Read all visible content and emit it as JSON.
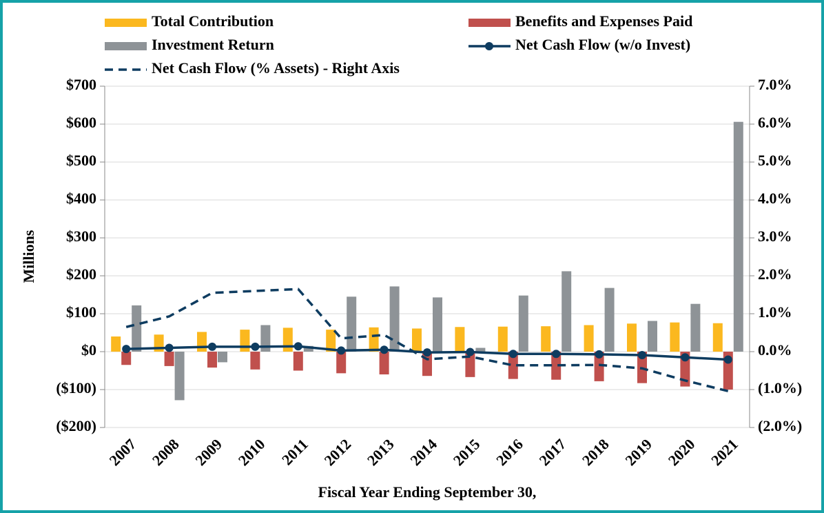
{
  "chart_data": {
    "type": "bar",
    "x_label": "Fiscal Year Ending September 30,",
    "y_label": "Millions",
    "categories": [
      "2007",
      "2008",
      "2009",
      "2010",
      "2011",
      "2012",
      "2013",
      "2014",
      "2015",
      "2016",
      "2017",
      "2018",
      "2019",
      "2020",
      "2021"
    ],
    "series": [
      {
        "name": "Total Contribution",
        "type": "bar",
        "color": "#fbb81f",
        "values": [
          40,
          45,
          52,
          58,
          63,
          58,
          64,
          61,
          65,
          66,
          67,
          70,
          74,
          77,
          75
        ]
      },
      {
        "name": "Benefits and Expenses Paid",
        "type": "bar",
        "color": "#c0504d",
        "values": [
          -35,
          -38,
          -42,
          -47,
          -50,
          -57,
          -60,
          -64,
          -67,
          -72,
          -74,
          -78,
          -83,
          -92,
          -100
        ]
      },
      {
        "name": "Investment Return",
        "type": "bar",
        "color": "#8e9397",
        "values": [
          122,
          -128,
          -28,
          70,
          15,
          145,
          172,
          143,
          10,
          148,
          212,
          168,
          81,
          126,
          606
        ]
      },
      {
        "name": "Net Cash Flow (w/o Invest)",
        "type": "line",
        "color": "#0e3c60",
        "markers": true,
        "values": [
          7,
          10,
          13,
          13,
          14,
          3,
          5,
          -2,
          -1,
          -6,
          -6,
          -7,
          -9,
          -15,
          -21
        ]
      },
      {
        "name": "Net Cash Flow (% Assets) - Right Axis",
        "type": "line",
        "color": "#0e3c60",
        "dashed": true,
        "axis": "y2",
        "values": [
          0.65,
          0.93,
          1.55,
          1.6,
          1.65,
          0.35,
          0.44,
          -0.2,
          -0.13,
          -0.36,
          -0.36,
          -0.35,
          -0.44,
          -0.76,
          -1.04
        ]
      }
    ],
    "ylim": [
      -200,
      700
    ],
    "yticks": [
      {
        "value": -200,
        "label": "($200)"
      },
      {
        "value": -100,
        "label": "($100)"
      },
      {
        "value": 0,
        "label": "$0"
      },
      {
        "value": 100,
        "label": "$100"
      },
      {
        "value": 200,
        "label": "$200"
      },
      {
        "value": 300,
        "label": "$300"
      },
      {
        "value": 400,
        "label": "$400"
      },
      {
        "value": 500,
        "label": "$500"
      },
      {
        "value": 600,
        "label": "$600"
      },
      {
        "value": 700,
        "label": "$700"
      }
    ],
    "y2lim": [
      -2,
      7
    ],
    "y2ticks": [
      {
        "value": -2,
        "label": "(2.0%)"
      },
      {
        "value": -1,
        "label": "(1.0%)"
      },
      {
        "value": 0,
        "label": "0.0%"
      },
      {
        "value": 1,
        "label": "1.0%"
      },
      {
        "value": 2,
        "label": "2.0%"
      },
      {
        "value": 3,
        "label": "3.0%"
      },
      {
        "value": 4,
        "label": "4.0%"
      },
      {
        "value": 5,
        "label": "5.0%"
      },
      {
        "value": 6,
        "label": "6.0%"
      },
      {
        "value": 7,
        "label": "7.0%"
      }
    ],
    "grid": true,
    "legend": "top"
  }
}
